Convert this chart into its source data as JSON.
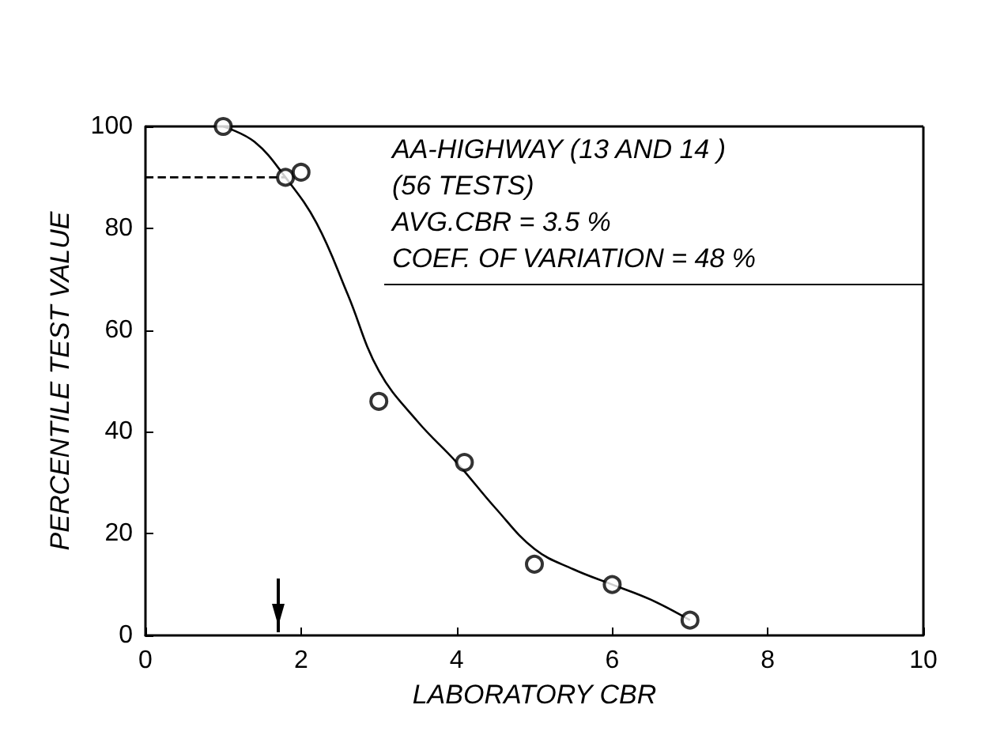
{
  "chart_data": {
    "type": "scatter",
    "xlabel": "LABORATORY CBR",
    "ylabel": "PERCENTILE TEST VALUE",
    "xlim": [
      0,
      10
    ],
    "xticks": [
      0,
      2,
      4,
      6,
      8,
      10
    ],
    "ylim": [
      0,
      100
    ],
    "yticks": [
      0,
      20,
      40,
      60,
      80,
      100
    ],
    "grid": false,
    "marker": "circle",
    "series": [
      {
        "color": "#000000",
        "x": [
          1,
          1.8,
          2,
          3,
          4.1,
          5,
          6,
          7
        ],
        "values": [
          100,
          90,
          91,
          46,
          34,
          14,
          10,
          3
        ]
      },
      {
        "type": "line",
        "color": "#000000",
        "line_style": "solid",
        "marker": "none",
        "x": [
          1,
          1.4,
          1.8,
          2.2,
          2.6,
          3,
          3.5,
          4,
          4.5,
          5,
          5.5,
          6,
          6.5,
          7
        ],
        "values": [
          100,
          97,
          90,
          81,
          67,
          52,
          42,
          34,
          25,
          17,
          13,
          10,
          7,
          3
        ]
      },
      {
        "type": "line",
        "color": "#000000",
        "line_style": "dashed",
        "marker": "none",
        "x": [
          0,
          1.8
        ],
        "values": [
          90,
          90
        ]
      }
    ],
    "annotations": [
      "AA-HIGHWAY (13 AND 14 )",
      "(56 TESTS)",
      "AVG.CBR = 3.5 %",
      "COEF. OF VARIATION = 48 %"
    ]
  }
}
